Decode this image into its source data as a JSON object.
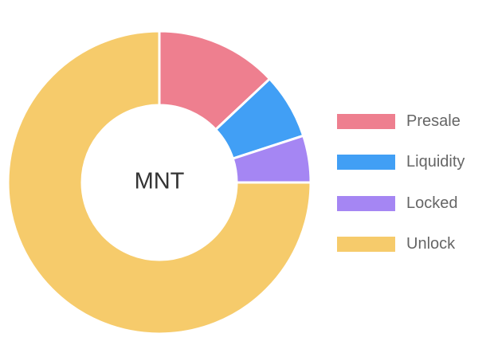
{
  "chart_data": {
    "type": "pie",
    "variant": "doughnut",
    "center_label": "MNT",
    "legend_position": "right",
    "slices": [
      {
        "name": "Presale",
        "value": 13,
        "color": "#ee7f8f"
      },
      {
        "name": "Liquidity",
        "value": 7,
        "color": "#419ff5"
      },
      {
        "name": "Locked",
        "value": 5,
        "color": "#a586f3"
      },
      {
        "name": "Unlock",
        "value": 75,
        "color": "#f6cb6b"
      }
    ]
  }
}
